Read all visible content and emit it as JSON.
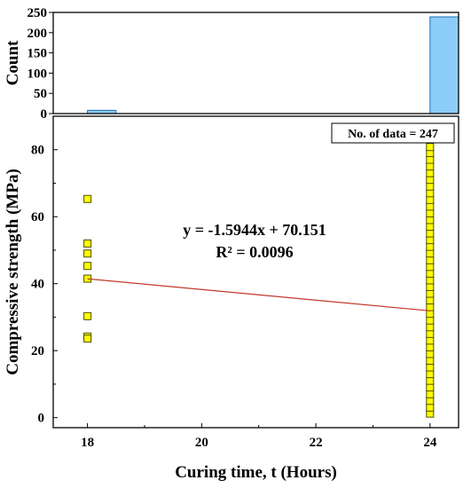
{
  "chart_data": [
    {
      "type": "bar",
      "panel": "marginal histogram",
      "ylabel": "Count",
      "ylim": [
        0,
        250
      ],
      "yticks": [
        0,
        50,
        100,
        150,
        200,
        250
      ],
      "bars": [
        {
          "x_start": 18.0,
          "x_end": 18.5,
          "count": 8
        },
        {
          "x_start": 24.0,
          "x_end": 24.5,
          "count": 239
        }
      ],
      "bar_color": "#8cccf8",
      "bar_edge": "#1a6fb5"
    },
    {
      "type": "scatter",
      "xlabel": "Curing time, t (Hours)",
      "ylabel": "Compressive strength (MPa)",
      "xlim": [
        17.4,
        24.5
      ],
      "ylim": [
        -3,
        90
      ],
      "xticks": [
        18,
        20,
        22,
        24
      ],
      "yticks": [
        0,
        20,
        40,
        60,
        80
      ],
      "marker_color": "#ffff00",
      "marker_edge": "#4d4d00",
      "series": [
        {
          "points": [
            [
              18,
              65.3
            ],
            [
              18,
              52.0
            ],
            [
              18,
              49.0
            ],
            [
              18,
              45.3
            ],
            [
              18,
              41.5
            ],
            [
              18,
              30.3
            ],
            [
              18,
              24.2
            ],
            [
              18,
              23.6
            ],
            [
              24,
              1.2
            ],
            [
              24,
              3.0
            ],
            [
              24,
              5.0
            ],
            [
              24,
              7.0
            ],
            [
              24,
              9.0
            ],
            [
              24,
              11.0
            ],
            [
              24,
              13.0
            ],
            [
              24,
              15.0
            ],
            [
              24,
              17.0
            ],
            [
              24,
              19.0
            ],
            [
              24,
              21.0
            ],
            [
              24,
              23.0
            ],
            [
              24,
              25.0
            ],
            [
              24,
              27.0
            ],
            [
              24,
              29.0
            ],
            [
              24,
              31.0
            ],
            [
              24,
              33.0
            ],
            [
              24,
              35.0
            ],
            [
              24,
              37.0
            ],
            [
              24,
              39.0
            ],
            [
              24,
              41.0
            ],
            [
              24,
              43.0
            ],
            [
              24,
              45.0
            ],
            [
              24,
              47.0
            ],
            [
              24,
              49.0
            ],
            [
              24,
              51.0
            ],
            [
              24,
              53.0
            ],
            [
              24,
              55.0
            ],
            [
              24,
              57.0
            ],
            [
              24,
              59.0
            ],
            [
              24,
              61.0
            ],
            [
              24,
              63.0
            ],
            [
              24,
              65.0
            ],
            [
              24,
              67.0
            ],
            [
              24,
              69.0
            ],
            [
              24,
              71.0
            ],
            [
              24,
              73.0
            ],
            [
              24,
              75.0
            ],
            [
              24,
              77.0
            ],
            [
              24,
              79.0
            ],
            [
              24,
              80.8
            ]
          ]
        }
      ],
      "trendline": {
        "slope": -1.5944,
        "intercept": 70.151,
        "color": "#c0392b"
      },
      "equation_text": "y = -1.5944x + 70.151",
      "r2_text": "R² = 0.0096",
      "data_count_label": "No. of data = 247"
    }
  ]
}
